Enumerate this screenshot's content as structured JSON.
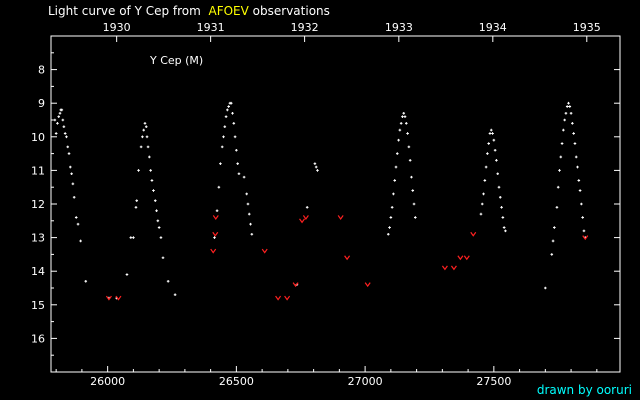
{
  "header": {
    "title_prefix": "Light curve of Y Cep from",
    "title_source": "AFOEV",
    "title_suffix": "observations",
    "source_color": "#ffff00"
  },
  "credit": {
    "text": "drawn by ooruri",
    "color": "#00ffff"
  },
  "chart_data": {
    "type": "scatter",
    "title": "Light curve of Y Cep from AFOEV observations",
    "plot_label": "Y Cep (M)",
    "x_axis": {
      "label": "",
      "range": [
        25780,
        27990
      ],
      "ticks": [
        26000,
        26500,
        27000,
        27500
      ]
    },
    "x2_axis": {
      "label": "",
      "ticks": [
        {
          "label": "1930",
          "x": 26035
        },
        {
          "label": "1931",
          "x": 26400
        },
        {
          "label": "1932",
          "x": 26765
        },
        {
          "label": "1933",
          "x": 27131
        },
        {
          "label": "1934",
          "x": 27496
        },
        {
          "label": "1935",
          "x": 27861
        }
      ]
    },
    "y_axis": {
      "label": "",
      "range": [
        17,
        7
      ],
      "inverted": true,
      "ticks": [
        8,
        9,
        10,
        11,
        12,
        13,
        14,
        15,
        16
      ]
    },
    "grid": false,
    "series": [
      {
        "marker": "dot",
        "color": "#ffffff",
        "points": [
          [
            25795,
            9.5
          ],
          [
            25800,
            9.9
          ],
          [
            25805,
            9.6
          ],
          [
            25810,
            9.4
          ],
          [
            25815,
            9.3
          ],
          [
            25818,
            9.2
          ],
          [
            25822,
            9.2
          ],
          [
            25826,
            9.5
          ],
          [
            25830,
            9.7
          ],
          [
            25835,
            9.9
          ],
          [
            25840,
            10.0
          ],
          [
            25845,
            10.3
          ],
          [
            25850,
            10.5
          ],
          [
            25855,
            10.9
          ],
          [
            25860,
            11.1
          ],
          [
            25865,
            11.4
          ],
          [
            25870,
            11.8
          ],
          [
            25878,
            12.4
          ],
          [
            25885,
            12.6
          ],
          [
            25895,
            13.1
          ],
          [
            25915,
            14.3
          ],
          [
            26005,
            14.8
          ],
          [
            26035,
            14.8
          ],
          [
            26075,
            14.1
          ],
          [
            26090,
            13.0
          ],
          [
            26100,
            13.0
          ],
          [
            26110,
            12.1
          ],
          [
            26113,
            11.9
          ],
          [
            26120,
            11.0
          ],
          [
            26130,
            10.3
          ],
          [
            26135,
            10.0
          ],
          [
            26140,
            9.8
          ],
          [
            26145,
            9.6
          ],
          [
            26150,
            9.7
          ],
          [
            26153,
            10.0
          ],
          [
            26157,
            10.3
          ],
          [
            26162,
            10.6
          ],
          [
            26167,
            11.0
          ],
          [
            26172,
            11.3
          ],
          [
            26178,
            11.6
          ],
          [
            26185,
            11.9
          ],
          [
            26190,
            12.2
          ],
          [
            26195,
            12.5
          ],
          [
            26200,
            12.7
          ],
          [
            26207,
            13.0
          ],
          [
            26215,
            13.6
          ],
          [
            26235,
            14.3
          ],
          [
            26262,
            14.7
          ],
          [
            26415,
            13.0
          ],
          [
            26425,
            12.2
          ],
          [
            26432,
            11.5
          ],
          [
            26438,
            10.8
          ],
          [
            26445,
            10.3
          ],
          [
            26450,
            10.0
          ],
          [
            26455,
            9.7
          ],
          [
            26460,
            9.4
          ],
          [
            26465,
            9.2
          ],
          [
            26470,
            9.1
          ],
          [
            26475,
            9.0
          ],
          [
            26480,
            9.0
          ],
          [
            26485,
            9.3
          ],
          [
            26490,
            9.6
          ],
          [
            26495,
            10.0
          ],
          [
            26500,
            10.4
          ],
          [
            26505,
            10.8
          ],
          [
            26510,
            11.1
          ],
          [
            26530,
            11.2
          ],
          [
            26540,
            11.7
          ],
          [
            26545,
            12.0
          ],
          [
            26550,
            12.3
          ],
          [
            26555,
            12.6
          ],
          [
            26560,
            12.9
          ],
          [
            26735,
            14.4
          ],
          [
            26775,
            12.1
          ],
          [
            26805,
            10.8
          ],
          [
            26810,
            10.9
          ],
          [
            26815,
            11.0
          ],
          [
            27090,
            12.9
          ],
          [
            27095,
            12.7
          ],
          [
            27100,
            12.4
          ],
          [
            27105,
            12.1
          ],
          [
            27110,
            11.7
          ],
          [
            27115,
            11.3
          ],
          [
            27120,
            10.9
          ],
          [
            27125,
            10.5
          ],
          [
            27130,
            10.1
          ],
          [
            27135,
            9.8
          ],
          [
            27140,
            9.6
          ],
          [
            27145,
            9.4
          ],
          [
            27150,
            9.3
          ],
          [
            27155,
            9.4
          ],
          [
            27160,
            9.6
          ],
          [
            27165,
            9.9
          ],
          [
            27170,
            10.3
          ],
          [
            27175,
            10.7
          ],
          [
            27180,
            11.2
          ],
          [
            27185,
            11.6
          ],
          [
            27190,
            12.0
          ],
          [
            27195,
            12.4
          ],
          [
            27450,
            12.3
          ],
          [
            27455,
            12.0
          ],
          [
            27460,
            11.7
          ],
          [
            27465,
            11.3
          ],
          [
            27470,
            10.9
          ],
          [
            27475,
            10.5
          ],
          [
            27480,
            10.2
          ],
          [
            27485,
            9.9
          ],
          [
            27490,
            9.8
          ],
          [
            27495,
            9.9
          ],
          [
            27500,
            10.1
          ],
          [
            27505,
            10.4
          ],
          [
            27510,
            10.7
          ],
          [
            27515,
            11.1
          ],
          [
            27520,
            11.5
          ],
          [
            27525,
            11.8
          ],
          [
            27530,
            12.1
          ],
          [
            27535,
            12.4
          ],
          [
            27540,
            12.7
          ],
          [
            27545,
            12.8
          ],
          [
            27700,
            14.5
          ],
          [
            27725,
            13.5
          ],
          [
            27730,
            13.1
          ],
          [
            27735,
            12.7
          ],
          [
            27745,
            12.1
          ],
          [
            27750,
            11.5
          ],
          [
            27755,
            11.0
          ],
          [
            27760,
            10.6
          ],
          [
            27765,
            10.2
          ],
          [
            27770,
            9.8
          ],
          [
            27775,
            9.5
          ],
          [
            27780,
            9.3
          ],
          [
            27785,
            9.1
          ],
          [
            27790,
            9.0
          ],
          [
            27795,
            9.1
          ],
          [
            27800,
            9.3
          ],
          [
            27805,
            9.6
          ],
          [
            27810,
            9.9
          ],
          [
            27815,
            10.2
          ],
          [
            27820,
            10.6
          ],
          [
            27825,
            10.9
          ],
          [
            27830,
            11.3
          ],
          [
            27835,
            11.6
          ],
          [
            27840,
            12.0
          ],
          [
            27845,
            12.4
          ],
          [
            27850,
            12.8
          ],
          [
            27855,
            13.0
          ]
        ]
      },
      {
        "marker": "v",
        "color": "#ff2020",
        "points": [
          [
            26005,
            14.8
          ],
          [
            26042,
            14.8
          ],
          [
            26410,
            13.4
          ],
          [
            26418,
            12.9
          ],
          [
            26420,
            12.4
          ],
          [
            26610,
            13.4
          ],
          [
            26662,
            14.8
          ],
          [
            26697,
            14.8
          ],
          [
            26730,
            14.4
          ],
          [
            26755,
            12.5
          ],
          [
            26770,
            12.4
          ],
          [
            26905,
            12.4
          ],
          [
            26930,
            13.6
          ],
          [
            27010,
            14.4
          ],
          [
            27310,
            13.9
          ],
          [
            27345,
            13.9
          ],
          [
            27370,
            13.6
          ],
          [
            27395,
            13.6
          ],
          [
            27420,
            12.9
          ],
          [
            27855,
            13.0
          ]
        ]
      }
    ]
  }
}
